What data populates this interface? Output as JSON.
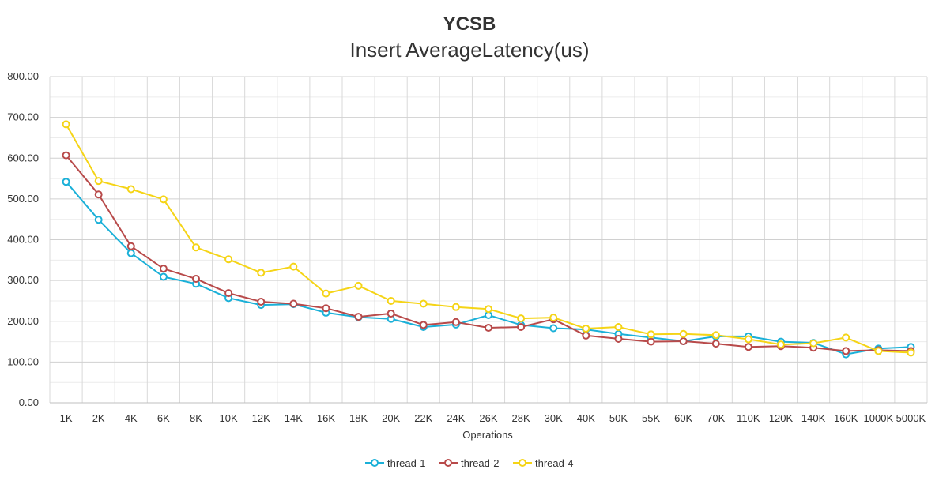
{
  "chart_data": {
    "type": "line",
    "title": "YCSB",
    "subtitle": "Insert AverageLatency(us)",
    "xlabel": "Operations",
    "ylabel": "",
    "ylim": [
      0,
      800
    ],
    "yticks": [
      "0.00",
      "100.00",
      "200.00",
      "300.00",
      "400.00",
      "500.00",
      "600.00",
      "700.00",
      "800.00"
    ],
    "grid": true,
    "legend_position": "bottom",
    "categories": [
      "1K",
      "2K",
      "4K",
      "6K",
      "8K",
      "10K",
      "12K",
      "14K",
      "16K",
      "18K",
      "20K",
      "22K",
      "24K",
      "26K",
      "28K",
      "30K",
      "40K",
      "50K",
      "55K",
      "60K",
      "70K",
      "110K",
      "120K",
      "140K",
      "160K",
      "1000K",
      "5000K"
    ],
    "series": [
      {
        "name": "thread-1",
        "color": "#1ab0d8",
        "values": [
          542,
          449,
          367,
          309,
          292,
          257,
          240,
          242,
          221,
          210,
          206,
          186,
          192,
          215,
          191,
          183,
          180,
          169,
          160,
          151,
          163,
          163,
          150,
          147,
          119,
          133,
          137
        ]
      },
      {
        "name": "thread-2",
        "color": "#b84a4a",
        "values": [
          607,
          511,
          384,
          329,
          304,
          269,
          248,
          243,
          232,
          211,
          219,
          191,
          198,
          184,
          186,
          205,
          165,
          157,
          150,
          151,
          145,
          137,
          139,
          135,
          127,
          129,
          127
        ]
      },
      {
        "name": "thread-4",
        "color": "#f5d416",
        "values": [
          683,
          544,
          524,
          499,
          381,
          352,
          319,
          334,
          268,
          287,
          250,
          243,
          235,
          230,
          207,
          209,
          182,
          186,
          168,
          169,
          166,
          156,
          143,
          146,
          160,
          127,
          123
        ]
      }
    ]
  }
}
